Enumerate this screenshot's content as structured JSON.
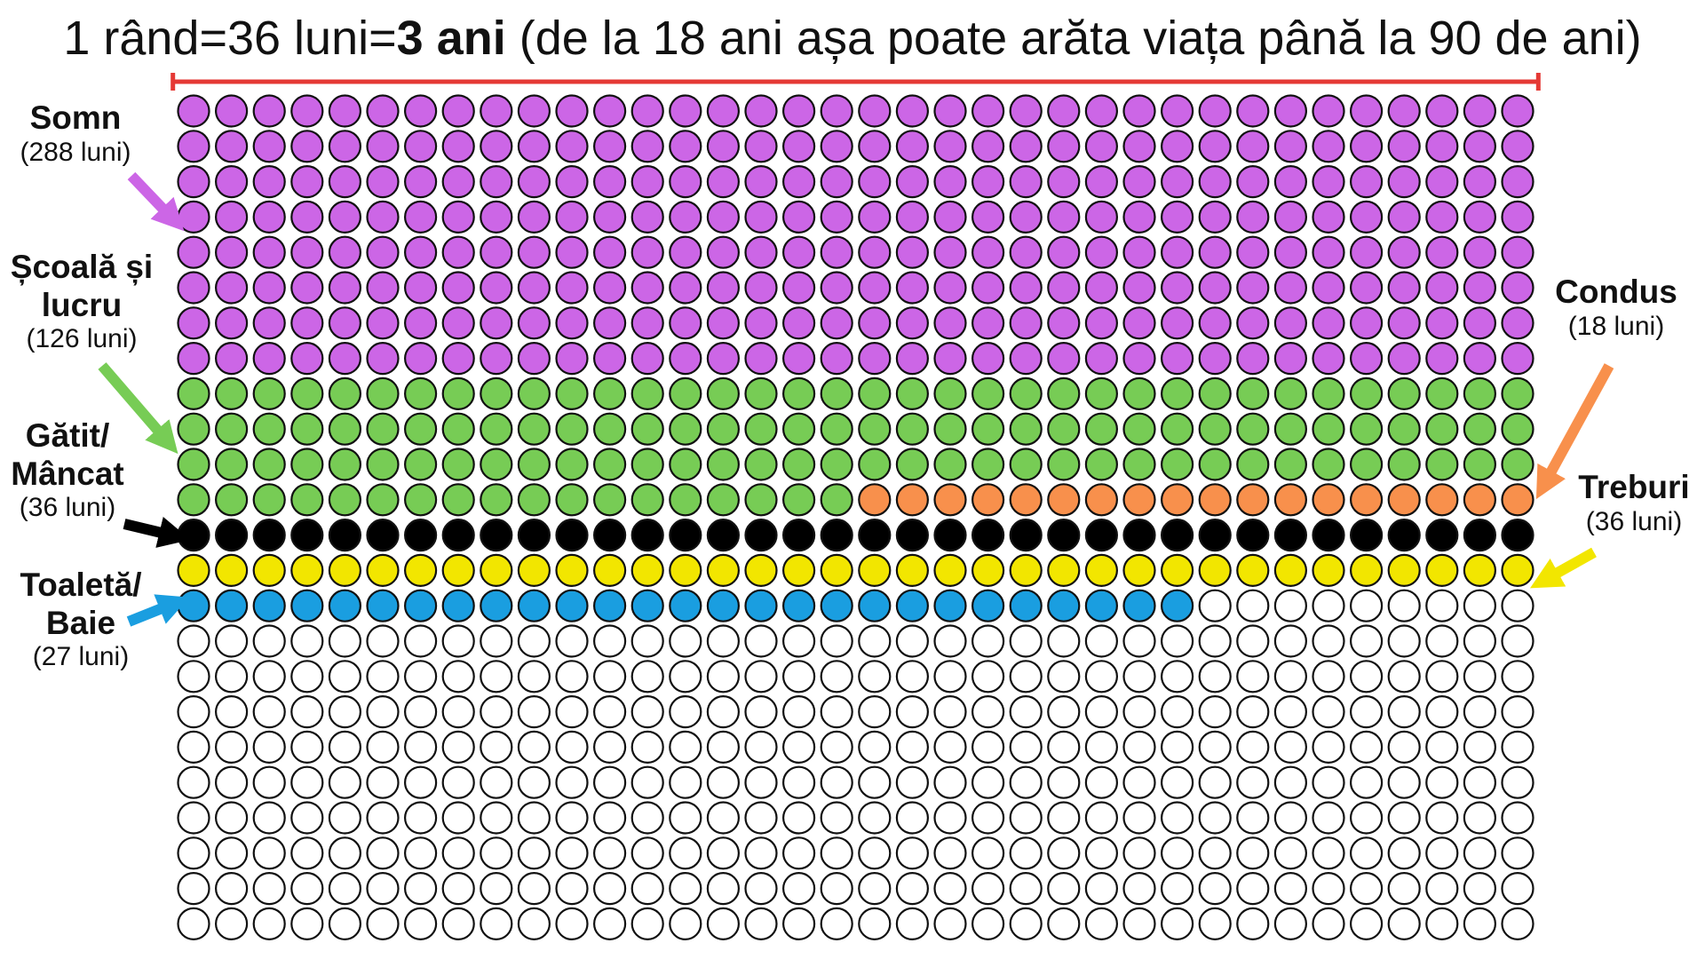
{
  "title": {
    "prefix": "1 rând=36 luni=",
    "bold": "3 ani",
    "suffix": " (de la 18 ani așa poate arăta viața până la 90 de ani)"
  },
  "grid": {
    "columns": 36,
    "rows": 24,
    "empty_color": "#ffffff",
    "outline_color": "#111111",
    "bracket_color": "#e53935"
  },
  "categories": [
    {
      "id": "somn",
      "name_lines": [
        "Somn"
      ],
      "duration": "(288 luni)",
      "months": 288,
      "color": "#cc66e6",
      "side": "left"
    },
    {
      "id": "scoala",
      "name_lines": [
        "Școală și",
        "lucru"
      ],
      "duration": "(126 luni)",
      "months": 126,
      "color": "#77cc55",
      "side": "left"
    },
    {
      "id": "condus",
      "name_lines": [
        "Condus"
      ],
      "duration": "(18 luni)",
      "months": 18,
      "color": "#f8904c",
      "side": "right"
    },
    {
      "id": "gatit",
      "name_lines": [
        "Gătit/",
        "Mâncat"
      ],
      "duration": "(36 luni)",
      "months": 36,
      "color": "#000000",
      "side": "left"
    },
    {
      "id": "treburi",
      "name_lines": [
        "Treburi"
      ],
      "duration": "(36 luni)",
      "months": 36,
      "color": "#f2e600",
      "side": "right"
    },
    {
      "id": "toaleta",
      "name_lines": [
        "Toaletă/",
        "Baie"
      ],
      "duration": "(27 luni)",
      "months": 27,
      "color": "#1a9ee0",
      "side": "left"
    }
  ]
}
